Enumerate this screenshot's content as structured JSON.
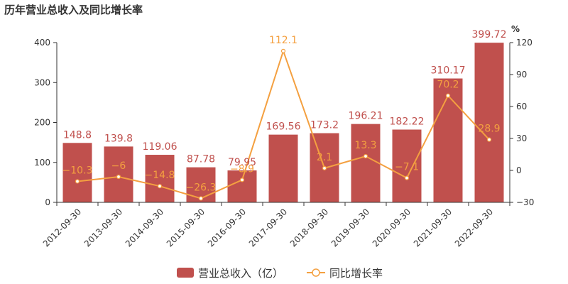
{
  "chart_data": {
    "type": "bar",
    "title": "历年营业总收入及同比增长率",
    "categories": [
      "2012-09-30",
      "2013-09-30",
      "2014-09-30",
      "2015-09-30",
      "2016-09-30",
      "2017-09-30",
      "2018-09-30",
      "2019-09-30",
      "2020-09-30",
      "2021-09-30",
      "2022-09-30"
    ],
    "series": [
      {
        "name": "营业总收入（亿）",
        "type": "bar",
        "axis": "left",
        "color": "#c0504d",
        "values": [
          148.8,
          139.8,
          119.06,
          87.78,
          79.95,
          169.56,
          173.2,
          196.21,
          182.22,
          310.17,
          399.72
        ],
        "labels": [
          "148.8",
          "139.8",
          "119.06",
          "87.78",
          "79.95",
          "169.56",
          "173.2",
          "196.21",
          "182.22",
          "310.17",
          "399.72"
        ]
      },
      {
        "name": "同比增长率",
        "type": "line",
        "axis": "right",
        "color": "#f4a040",
        "values": [
          -10.3,
          -6,
          -14.8,
          -26.3,
          -8.9,
          112.1,
          2.1,
          13.3,
          -7.1,
          70.2,
          28.9
        ],
        "labels": [
          "−10.3",
          "−6",
          "−14.8",
          "−26.3",
          "−8.9",
          "112.1",
          "2.1",
          "13.3",
          "−7.1",
          "70.2",
          "28.9"
        ]
      }
    ],
    "y_left": {
      "ylim": [
        0,
        400
      ],
      "ticks": [
        0,
        100,
        200,
        300,
        400
      ]
    },
    "y_right": {
      "unit": "%",
      "ylim": [
        -30,
        120
      ],
      "ticks": [
        -30,
        0,
        30,
        60,
        90,
        120
      ],
      "tick_labels": [
        "−30",
        "0",
        "30",
        "60",
        "90",
        "120"
      ]
    },
    "grid": false,
    "legend": "bottom-center"
  }
}
